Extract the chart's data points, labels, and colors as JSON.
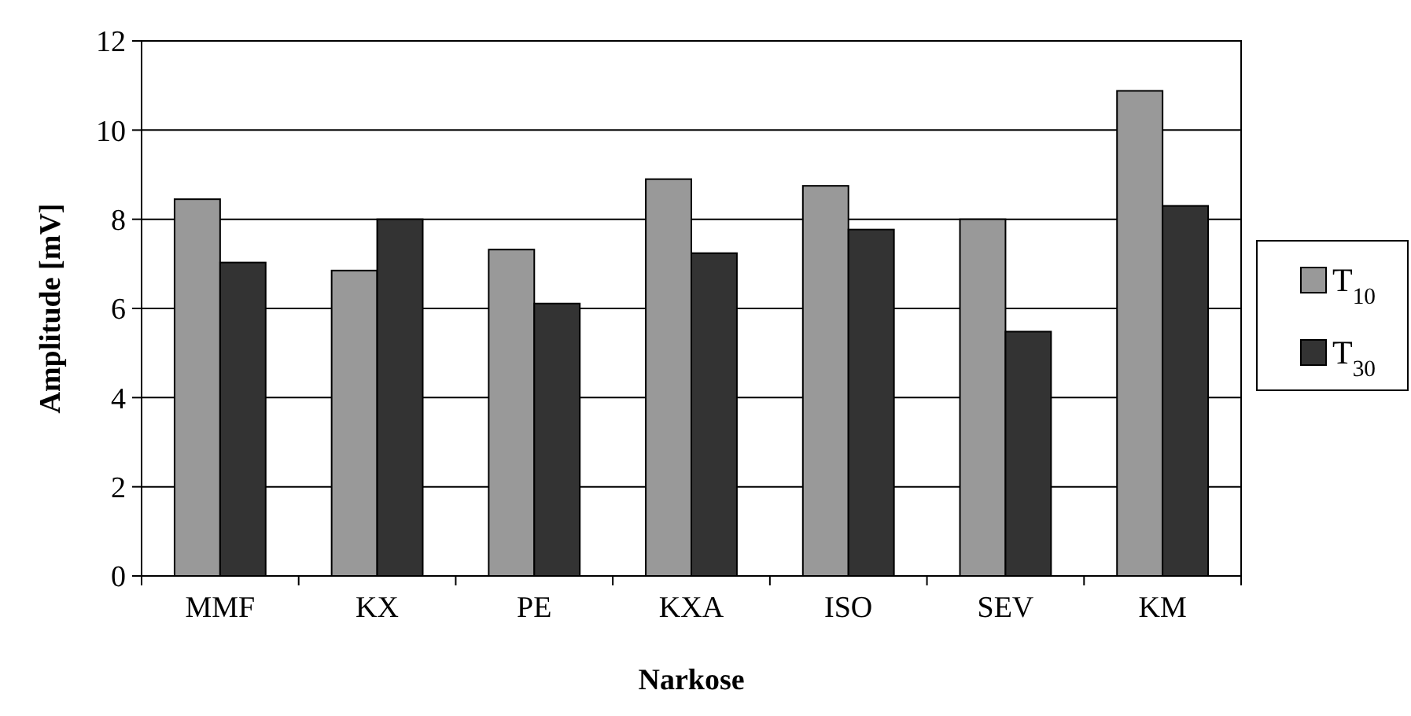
{
  "chart_data": {
    "type": "bar",
    "xlabel": "Narkose",
    "ylabel": "Amplitude [mV]",
    "categories": [
      "MMF",
      "KX",
      "PE",
      "KXA",
      "ISO",
      "SEV",
      "KM"
    ],
    "series": [
      {
        "name": "T$_{10}$",
        "color": "#999999",
        "values": [
          8.45,
          6.85,
          7.32,
          8.9,
          8.75,
          8.0,
          10.88
        ]
      },
      {
        "name": "T$_{30}$",
        "color": "#333333",
        "values": [
          7.03,
          8.0,
          6.11,
          7.24,
          7.77,
          5.48,
          8.3
        ]
      }
    ],
    "ylim": [
      0,
      12
    ],
    "yticks": [
      0,
      2,
      4,
      6,
      8,
      10,
      12
    ],
    "grid": "y",
    "legend": "right"
  }
}
